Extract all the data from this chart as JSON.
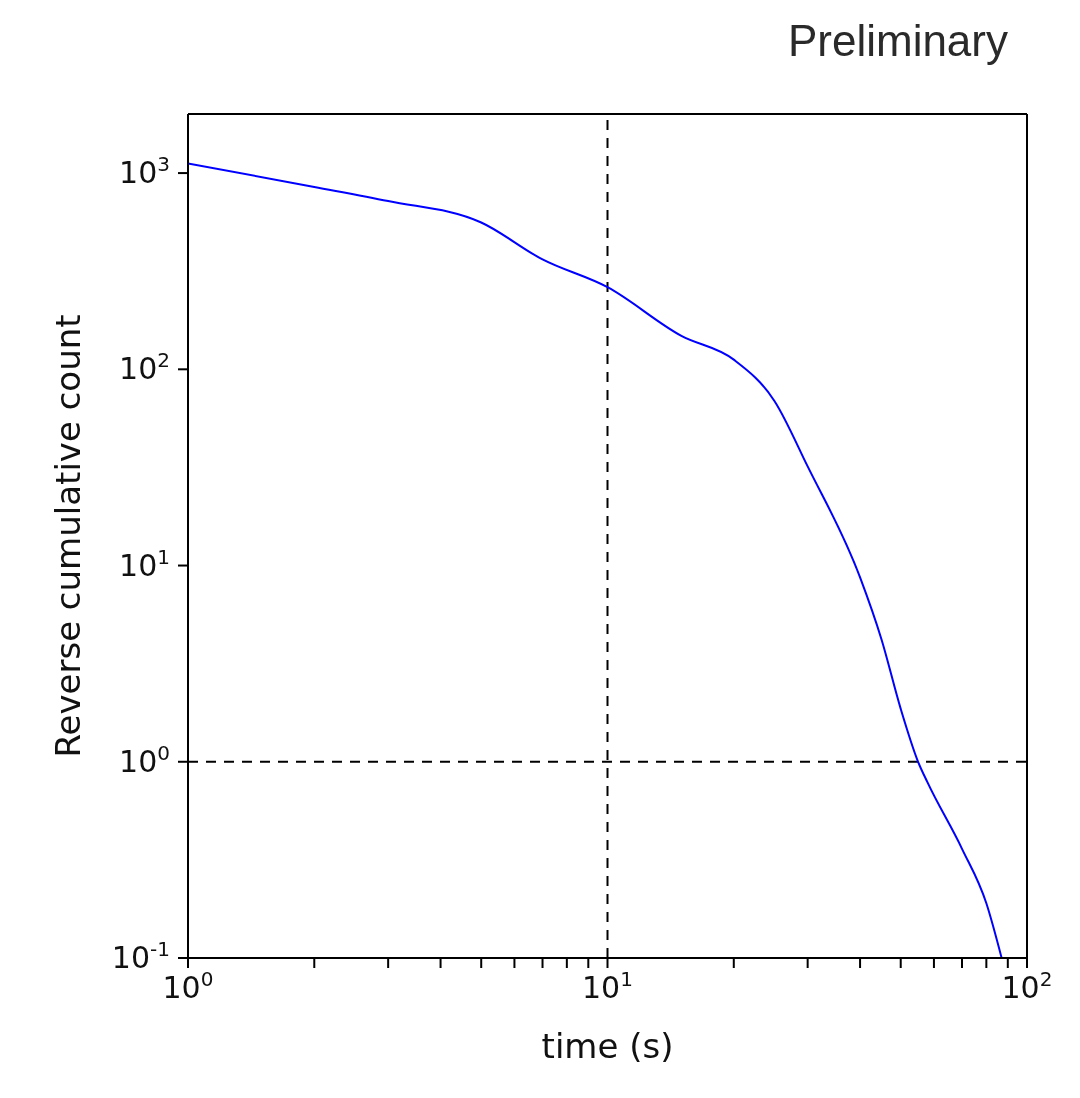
{
  "chart_data": {
    "type": "line",
    "xlabel": "time (s)",
    "ylabel": "Reverse cumulative count",
    "annotations": [
      "Preliminary"
    ],
    "log": "xy",
    "marker": "none",
    "line_style": "solid",
    "x": [
      1,
      2,
      3,
      5,
      7,
      10,
      15,
      20,
      25,
      30,
      40,
      45,
      50,
      55,
      58,
      70,
      80,
      87
    ],
    "series": [
      {
        "color": "#0000ff",
        "values": [
          1120,
          850,
          720,
          560,
          363,
          262,
          148,
          112,
          69,
          32,
          8.7,
          4.2,
          1.86,
          1,
          0.78,
          0.36,
          0.19,
          0.1
        ]
      }
    ],
    "xlim": [
      1,
      100
    ],
    "ylim": [
      0.1,
      2000
    ],
    "xticks": [
      {
        "value": 1,
        "label": "10$^{0}$"
      },
      {
        "value": 2,
        "label": null
      },
      {
        "value": 3,
        "label": null
      },
      {
        "value": 4,
        "label": null
      },
      {
        "value": 5,
        "label": null
      },
      {
        "value": 6,
        "label": null
      },
      {
        "value": 7,
        "label": null
      },
      {
        "value": 8,
        "label": null
      },
      {
        "value": 9,
        "label": null
      },
      {
        "value": 10,
        "label": "10$^{1}$"
      },
      {
        "value": 20,
        "label": null
      },
      {
        "value": 30,
        "label": null
      },
      {
        "value": 40,
        "label": null
      },
      {
        "value": 50,
        "label": null
      },
      {
        "value": 60,
        "label": null
      },
      {
        "value": 70,
        "label": null
      },
      {
        "value": 80,
        "label": null
      },
      {
        "value": 90,
        "label": null
      },
      {
        "value": 100,
        "label": "10$^{2}$"
      }
    ],
    "yticks": [
      {
        "value": 0.1,
        "label": "10$^{-1}$"
      },
      {
        "value": 1,
        "label": "10$^{0}$"
      },
      {
        "value": 10,
        "label": "10$^{1}$"
      },
      {
        "value": 100,
        "label": "10$^{2}$"
      },
      {
        "value": 1000,
        "label": "10$^{3}$"
      }
    ],
    "ref_lines": [
      {
        "axis": "x",
        "value": 10,
        "color": "#000000",
        "line_style": "dashed"
      },
      {
        "axis": "y",
        "value": 1,
        "color": "#000000",
        "line_style": "dashed"
      }
    ]
  }
}
